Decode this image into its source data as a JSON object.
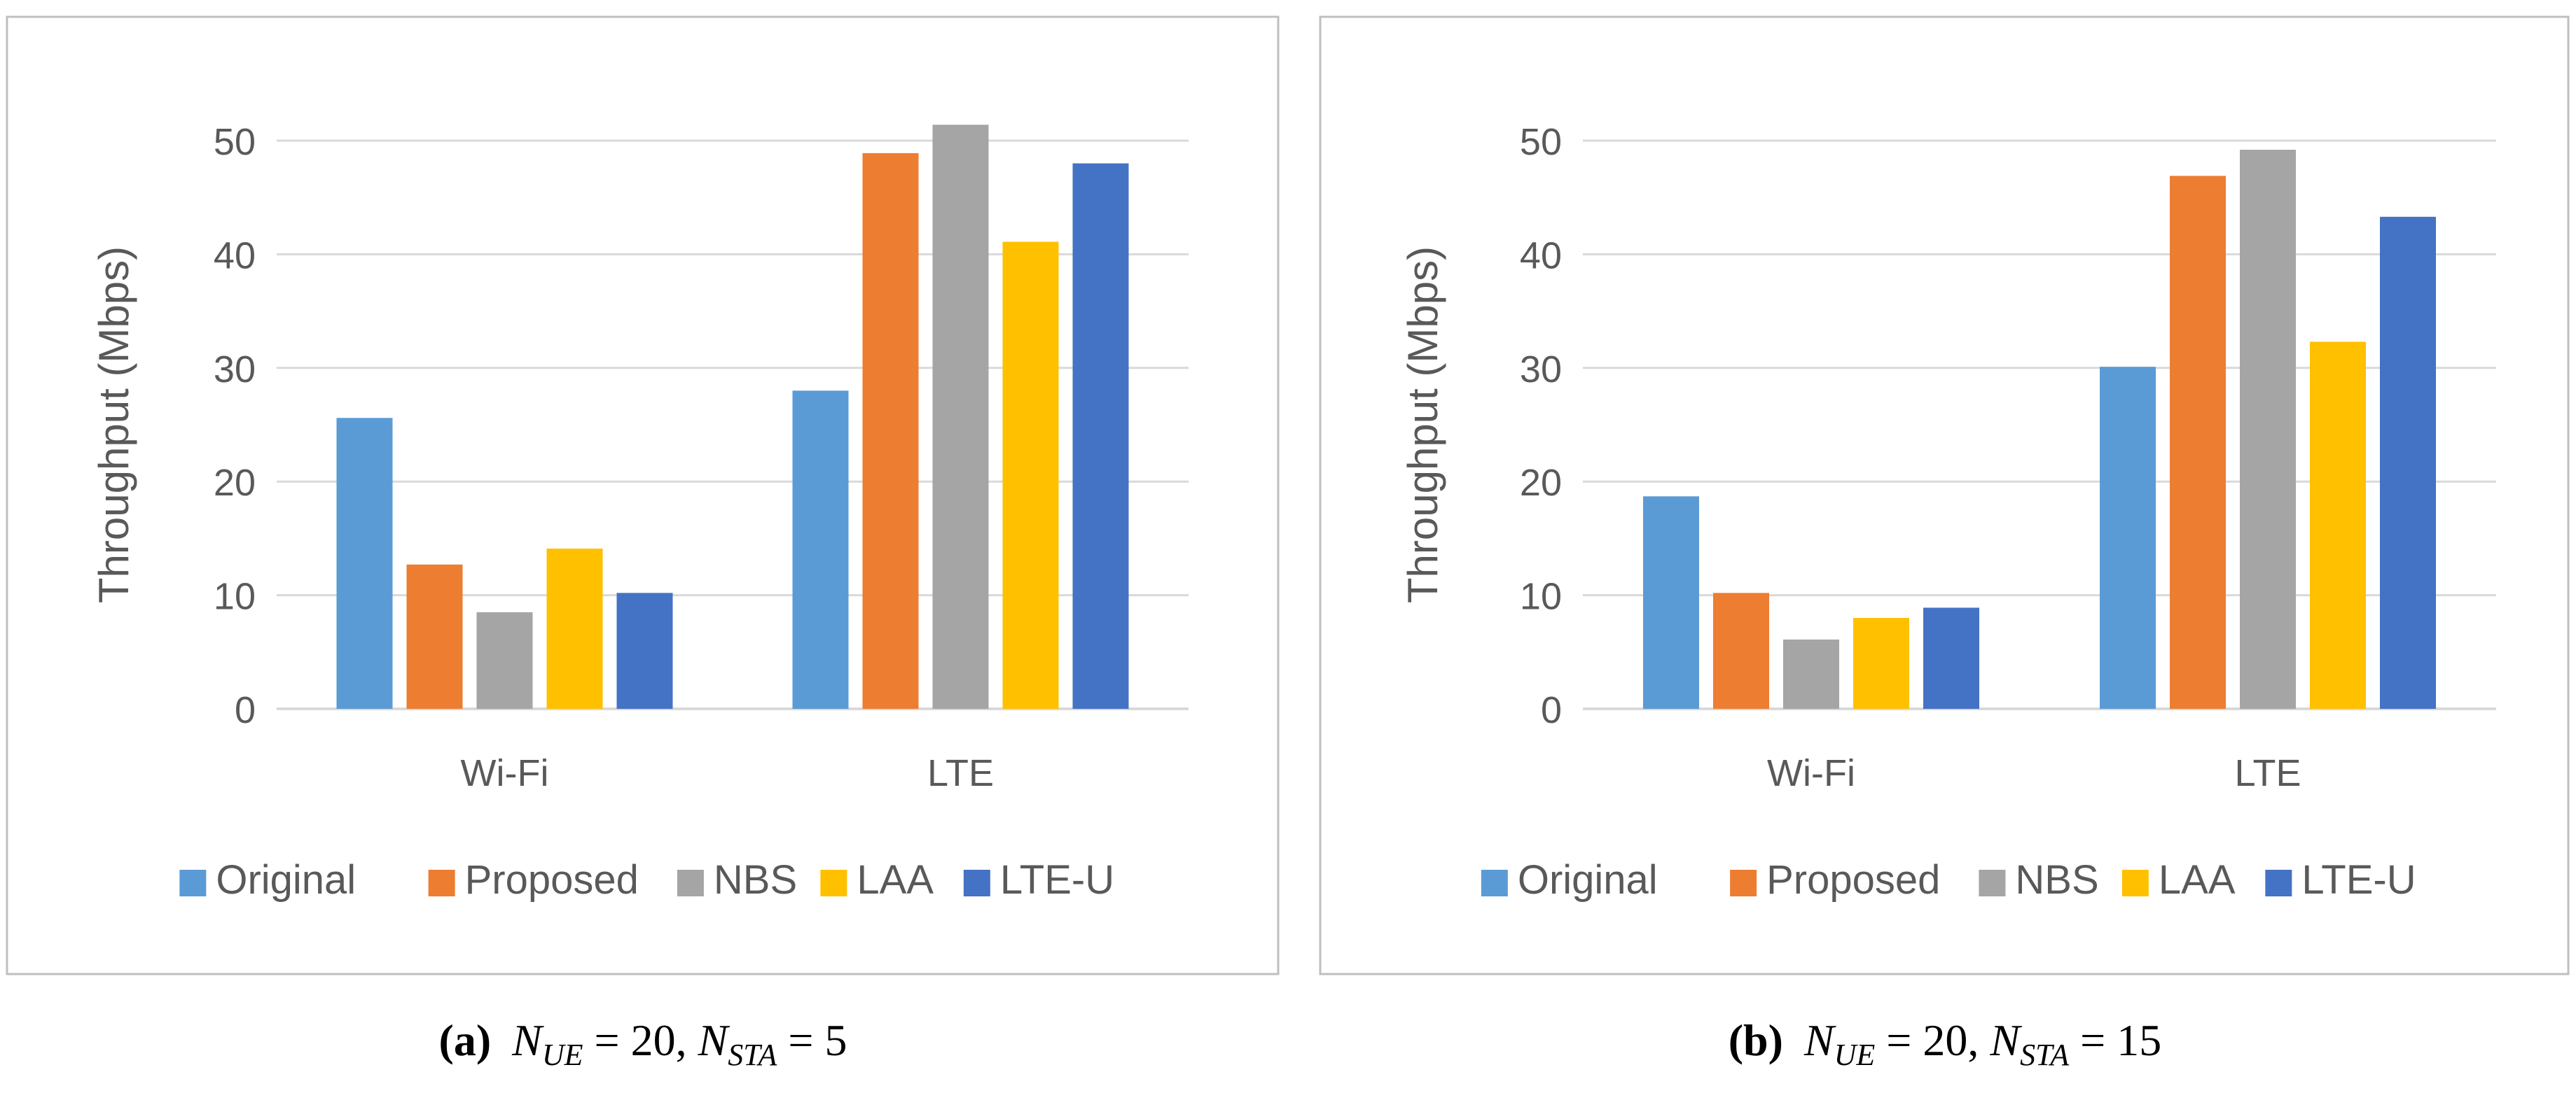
{
  "chart_data": [
    {
      "type": "bar",
      "categories": [
        "Wi-Fi",
        "LTE"
      ],
      "series": [
        {
          "name": "Original",
          "values": [
            25.6,
            28.0
          ]
        },
        {
          "name": "Proposed",
          "values": [
            12.7,
            48.9
          ]
        },
        {
          "name": "NBS",
          "values": [
            8.5,
            51.4
          ]
        },
        {
          "name": "LAA",
          "values": [
            14.1,
            41.1
          ]
        },
        {
          "name": "LTE-U",
          "values": [
            10.2,
            48.0
          ]
        }
      ],
      "title": "",
      "xlabel": "",
      "ylabel": "Throughput (Mbps)",
      "ylim": [
        0,
        50
      ],
      "yticks": [
        "0",
        "10",
        "20",
        "30",
        "40",
        "50"
      ],
      "grid": true,
      "legend_position": "bottom",
      "caption": {
        "label": "(a)",
        "formula": "N_UE = 20, N_STA = 5"
      }
    },
    {
      "type": "bar",
      "categories": [
        "Wi-Fi",
        "LTE"
      ],
      "series": [
        {
          "name": "Original",
          "values": [
            18.7,
            30.1
          ]
        },
        {
          "name": "Proposed",
          "values": [
            10.2,
            46.9
          ]
        },
        {
          "name": "NBS",
          "values": [
            6.1,
            49.2
          ]
        },
        {
          "name": "LAA",
          "values": [
            8.0,
            32.3
          ]
        },
        {
          "name": "LTE-U",
          "values": [
            8.9,
            43.3
          ]
        }
      ],
      "title": "",
      "xlabel": "",
      "ylabel": "Throughput (Mbps)",
      "ylim": [
        0,
        50
      ],
      "yticks": [
        "0",
        "10",
        "20",
        "30",
        "40",
        "50"
      ],
      "grid": true,
      "legend_position": "bottom",
      "caption": {
        "label": "(b)",
        "formula": "N_UE = 20, N_STA = 15"
      }
    }
  ],
  "colors": {
    "Original": "#5B9BD5",
    "Proposed": "#ED7D31",
    "NBS": "#A5A5A5",
    "LAA": "#FFC000",
    "LTE-U": "#4472C4",
    "grid": "#D9D9D9",
    "frame": "#BFBFBF",
    "text": "#595959"
  }
}
